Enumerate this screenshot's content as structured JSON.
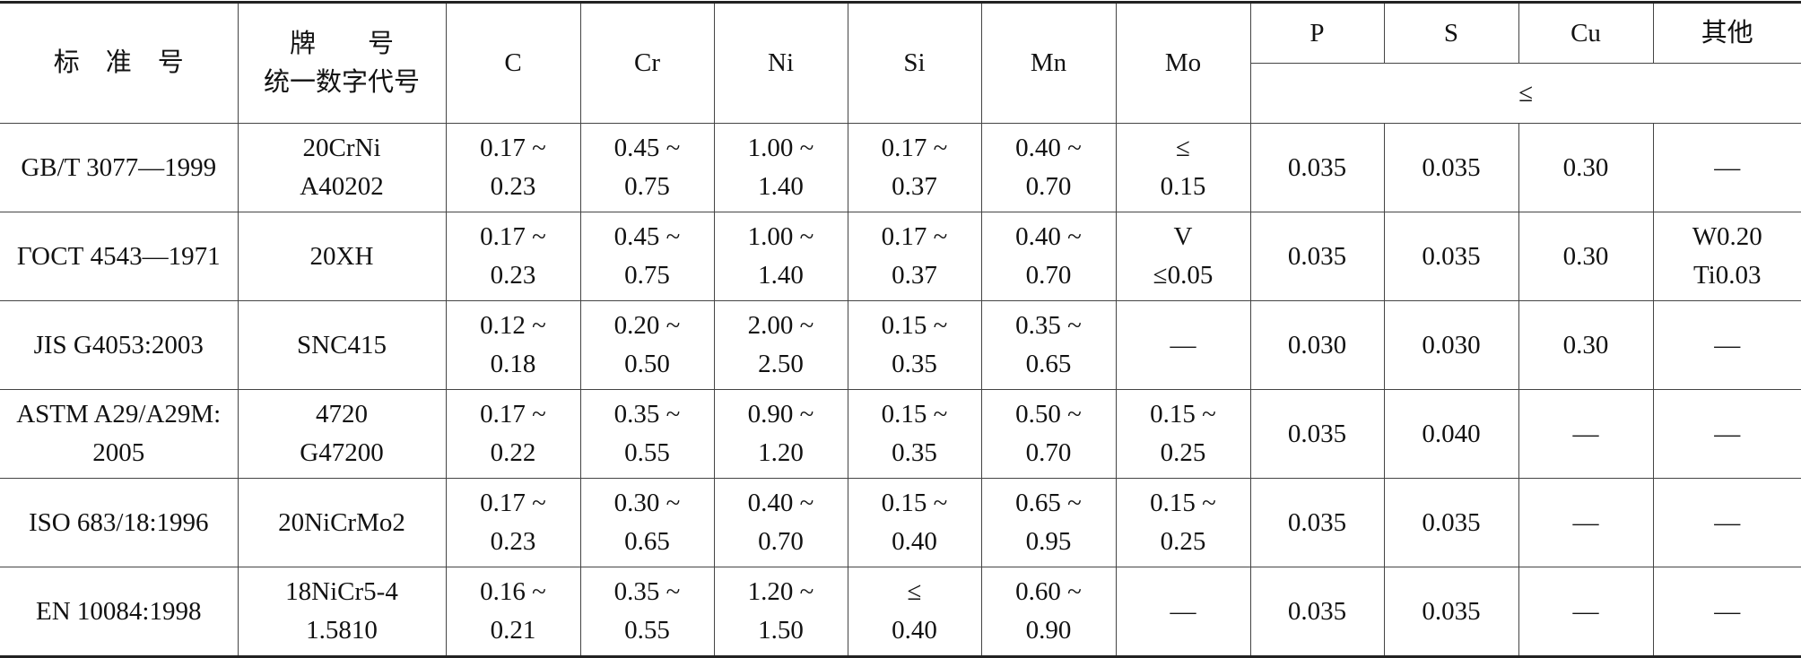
{
  "header": {
    "row1": [
      [
        "标　准　号"
      ],
      [
        "牌　　号",
        "统一数字代号"
      ],
      [
        "C"
      ],
      [
        "Cr"
      ],
      [
        "Ni"
      ],
      [
        "Si"
      ],
      [
        "Mn"
      ],
      [
        "Mo"
      ],
      [
        "P"
      ],
      [
        "S"
      ],
      [
        "Cu"
      ],
      [
        "其他"
      ]
    ],
    "row2": [
      "≤"
    ]
  },
  "table": {
    "rows": [
      [
        [
          "GB/T 3077—1999"
        ],
        [
          "20CrNi",
          "A40202"
        ],
        [
          "0.17 ~",
          "0.23"
        ],
        [
          "0.45 ~",
          "0.75"
        ],
        [
          "1.00 ~",
          "1.40"
        ],
        [
          "0.17 ~",
          "0.37"
        ],
        [
          "0.40 ~",
          "0.70"
        ],
        [
          "≤",
          "0.15"
        ],
        [
          "0.035"
        ],
        [
          "0.035"
        ],
        [
          "0.30"
        ],
        [
          "—"
        ]
      ],
      [
        [
          "ГОСТ 4543—1971"
        ],
        [
          "20XH"
        ],
        [
          "0.17 ~",
          "0.23"
        ],
        [
          "0.45 ~",
          "0.75"
        ],
        [
          "1.00 ~",
          "1.40"
        ],
        [
          "0.17 ~",
          "0.37"
        ],
        [
          "0.40 ~",
          "0.70"
        ],
        [
          "V",
          "≤0.05"
        ],
        [
          "0.035"
        ],
        [
          "0.035"
        ],
        [
          "0.30"
        ],
        [
          "W0.20",
          "Ti0.03"
        ]
      ],
      [
        [
          "JIS G4053:2003"
        ],
        [
          "SNC415"
        ],
        [
          "0.12 ~",
          "0.18"
        ],
        [
          "0.20 ~",
          "0.50"
        ],
        [
          "2.00 ~",
          "2.50"
        ],
        [
          "0.15 ~",
          "0.35"
        ],
        [
          "0.35 ~",
          "0.65"
        ],
        [
          "—"
        ],
        [
          "0.030"
        ],
        [
          "0.030"
        ],
        [
          "0.30"
        ],
        [
          "—"
        ]
      ],
      [
        [
          "ASTM A29/A29M:",
          "2005"
        ],
        [
          "4720",
          "G47200"
        ],
        [
          "0.17 ~",
          "0.22"
        ],
        [
          "0.35 ~",
          "0.55"
        ],
        [
          "0.90 ~",
          "1.20"
        ],
        [
          "0.15 ~",
          "0.35"
        ],
        [
          "0.50 ~",
          "0.70"
        ],
        [
          "0.15 ~",
          "0.25"
        ],
        [
          "0.035"
        ],
        [
          "0.040"
        ],
        [
          "—"
        ],
        [
          "—"
        ]
      ],
      [
        [
          "ISO 683/18:1996"
        ],
        [
          "20NiCrMo2"
        ],
        [
          "0.17 ~",
          "0.23"
        ],
        [
          "0.30 ~",
          "0.65"
        ],
        [
          "0.40 ~",
          "0.70"
        ],
        [
          "0.15 ~",
          "0.40"
        ],
        [
          "0.65 ~",
          "0.95"
        ],
        [
          "0.15 ~",
          "0.25"
        ],
        [
          "0.035"
        ],
        [
          "0.035"
        ],
        [
          "—"
        ],
        [
          "—"
        ]
      ],
      [
        [
          "EN 10084:1998"
        ],
        [
          "18NiCr5-4",
          "1.5810"
        ],
        [
          "0.16 ~",
          "0.21"
        ],
        [
          "0.35 ~",
          "0.55"
        ],
        [
          "1.20 ~",
          "1.50"
        ],
        [
          "≤",
          "0.40"
        ],
        [
          "0.60 ~",
          "0.90"
        ],
        [
          "—"
        ],
        [
          "0.035"
        ],
        [
          "0.035"
        ],
        [
          "—"
        ],
        [
          "—"
        ]
      ]
    ]
  }
}
